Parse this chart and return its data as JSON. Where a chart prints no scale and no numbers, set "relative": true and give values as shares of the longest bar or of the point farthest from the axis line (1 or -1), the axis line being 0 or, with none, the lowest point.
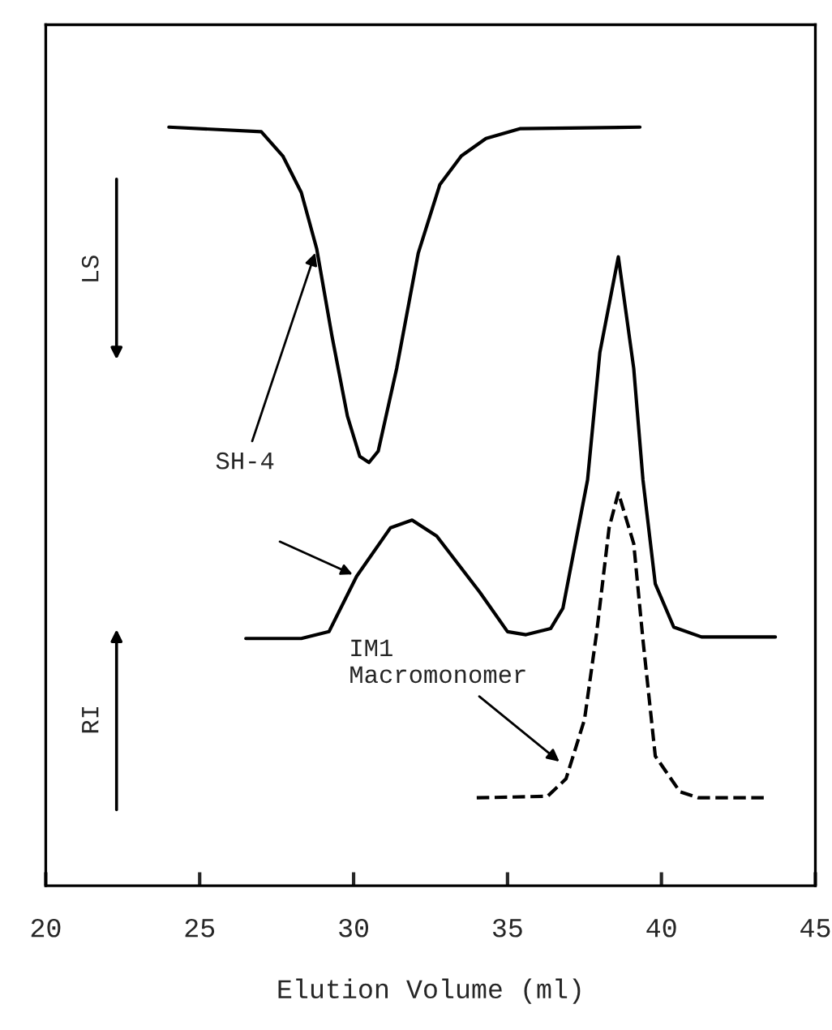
{
  "chart_data": {
    "type": "line",
    "xlabel": "Elution Volume (ml)",
    "relative": true,
    "xlim": [
      20,
      45
    ],
    "xticks": [
      20,
      25,
      30,
      35,
      40,
      45
    ],
    "grid": false,
    "legend": false,
    "marker": "none",
    "series": [
      {
        "color": "#000000",
        "line_style": "solid",
        "x": [
          24.0,
          27.0,
          27.7,
          28.3,
          28.8,
          29.3,
          29.8,
          30.2,
          30.5,
          30.8,
          31.4,
          32.1,
          32.8,
          33.5,
          34.3,
          35.4,
          39.3
        ],
        "values": [
          1.0,
          0.994,
          0.962,
          0.914,
          0.84,
          0.724,
          0.619,
          0.566,
          0.558,
          0.573,
          0.682,
          0.834,
          0.924,
          0.962,
          0.985,
          0.998,
          1.0
        ]
      },
      {
        "color": "#000000",
        "line_style": "solid",
        "x": [
          26.5,
          28.3,
          29.2,
          30.1,
          31.2,
          31.9,
          32.7,
          34.1,
          35.0,
          35.6,
          36.4,
          36.8,
          37.6,
          38.0,
          38.6,
          39.1,
          39.4,
          39.8,
          40.4,
          41.3,
          43.7
        ],
        "values": [
          0.326,
          0.326,
          0.335,
          0.408,
          0.472,
          0.482,
          0.461,
          0.387,
          0.335,
          0.331,
          0.339,
          0.366,
          0.535,
          0.703,
          0.829,
          0.682,
          0.535,
          0.398,
          0.341,
          0.328,
          0.328
        ]
      },
      {
        "color": "#000000",
        "line_style": "dashed",
        "x": [
          34.0,
          36.3,
          36.9,
          37.5,
          37.9,
          38.3,
          38.6,
          39.1,
          39.4,
          39.8,
          40.6,
          41.2,
          43.4
        ],
        "values": [
          0.116,
          0.118,
          0.141,
          0.219,
          0.335,
          0.472,
          0.518,
          0.451,
          0.324,
          0.171,
          0.124,
          0.116,
          0.116
        ]
      }
    ],
    "annotations": [
      "LS",
      "RI",
      {
        "text": "SH-4",
        "x": 28.8,
        "y": 0.84
      },
      {
        "text": "IM1\nMacromonomer",
        "x": 36.8,
        "y": 0.16
      }
    ]
  }
}
